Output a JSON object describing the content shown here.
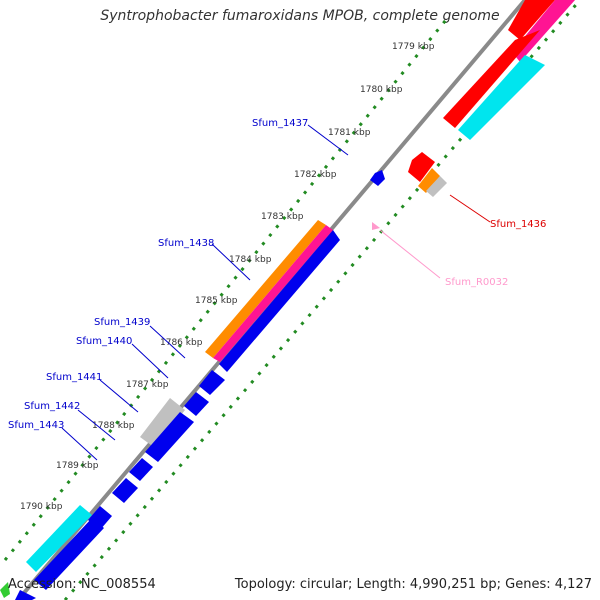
{
  "title": "Syntrophobacter fumaroxidans MPOB, complete genome",
  "accession_label": "Accession: NC_008554",
  "topology_label": "Topology: circular; Length: 4,990,251 bp; Genes: 4,127",
  "kbp_ticks": [
    "1779 kbp",
    "1780 kbp",
    "1781 kbp",
    "1782 kbp",
    "1783 kbp",
    "1784 kbp",
    "1785 kbp",
    "1786 kbp",
    "1787 kbp",
    "1788 kbp",
    "1789 kbp",
    "1790 kbp"
  ],
  "gene_labels": [
    {
      "text": "Sfum_1437",
      "color": "#0000cc"
    },
    {
      "text": "Sfum_1438",
      "color": "#0000cc"
    },
    {
      "text": "Sfum_1439",
      "color": "#0000cc"
    },
    {
      "text": "Sfum_1440",
      "color": "#0000cc"
    },
    {
      "text": "Sfum_1441",
      "color": "#0000cc"
    },
    {
      "text": "Sfum_1442",
      "color": "#0000cc"
    },
    {
      "text": "Sfum_1443",
      "color": "#0000cc"
    },
    {
      "text": "Sfum_1436",
      "color": "#dd0000"
    },
    {
      "text": "Sfum_R0032",
      "color": "#ff99cc"
    }
  ],
  "colors": {
    "cds": "#0000ee",
    "rRNA": "#ff0000",
    "pink": "#ff1493",
    "orange": "#ff8c00",
    "cyan": "#00e5ee",
    "gray": "#c0c0c0",
    "green_dots": "#228b22",
    "backbone": "#8a8a8a"
  }
}
